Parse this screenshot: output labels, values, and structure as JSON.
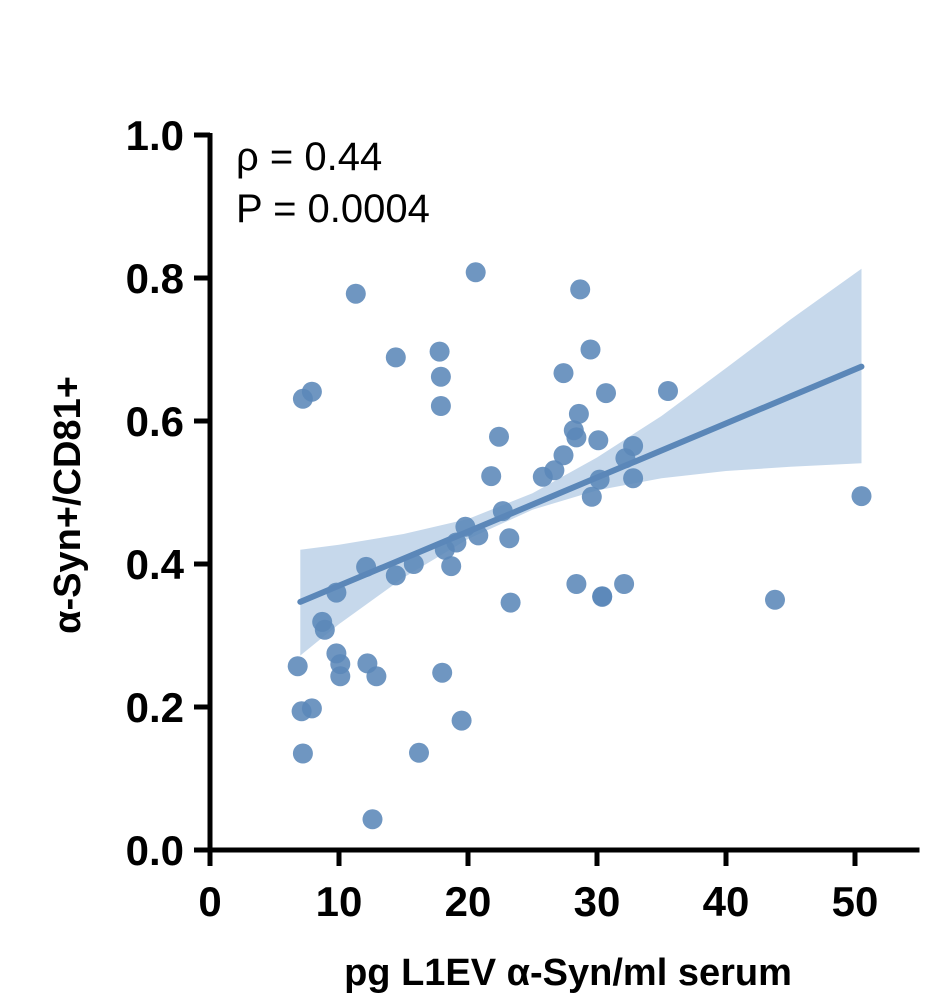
{
  "chart_data": {
    "type": "scatter",
    "xlabel": "pg L1EV α-Syn/ml serum",
    "ylabel": "α-Syn+/CD81+",
    "xlim": [
      0,
      55
    ],
    "ylim": [
      0,
      1.0
    ],
    "xticks": [
      0,
      10,
      20,
      30,
      40,
      50
    ],
    "xtick_labels": [
      "0",
      "10",
      "20",
      "30",
      "40",
      "50"
    ],
    "yticks": [
      0.0,
      0.2,
      0.4,
      0.6,
      0.8,
      1.0
    ],
    "ytick_labels": [
      "0.0",
      "0.2",
      "0.4",
      "0.6",
      "0.8",
      "1.0"
    ],
    "grid": false,
    "annotations": [
      "ρ = 0.44",
      "P = 0.0004"
    ],
    "colors": {
      "points": "#5b87b8",
      "line": "#5b87b8",
      "band": "#c3d6ea",
      "axis": "#000000"
    },
    "regression": {
      "x": [
        7,
        50.5
      ],
      "y": [
        0.347,
        0.676
      ]
    },
    "confidence_band": {
      "x": [
        7,
        10,
        15,
        20,
        25,
        30,
        35,
        40,
        45,
        50.5
      ],
      "lower": [
        0.272,
        0.316,
        0.381,
        0.435,
        0.476,
        0.503,
        0.52,
        0.53,
        0.536,
        0.541
      ],
      "upper": [
        0.42,
        0.427,
        0.442,
        0.463,
        0.499,
        0.549,
        0.607,
        0.674,
        0.742,
        0.813
      ]
    },
    "series": [
      {
        "x": [
          7.2,
          7.9,
          11.3,
          14.4,
          17.8,
          17.9,
          17.9,
          20.6,
          22.4,
          21.8,
          22.7,
          23.2,
          23.3,
          25.8,
          26.7,
          27.4,
          27.4,
          28.2,
          28.4,
          28.6,
          28.7,
          29.5,
          29.6,
          30.1,
          30.2,
          30.4,
          30.7,
          32.2,
          32.8,
          32.8,
          35.5,
          50.5,
          43.8,
          32.1,
          30.4,
          28.4,
          19.5,
          18.0,
          16.2,
          12.6,
          12.9,
          12.2,
          10.1,
          10.1,
          9.8,
          8.9,
          8.7,
          7.9,
          7.2,
          7.1,
          6.8,
          9.8,
          12.1,
          14.4,
          15.8,
          18.2,
          18.7,
          19.1,
          19.8,
          20.8
        ],
        "y": [
          0.631,
          0.641,
          0.778,
          0.689,
          0.697,
          0.662,
          0.621,
          0.808,
          0.578,
          0.523,
          0.474,
          0.436,
          0.346,
          0.522,
          0.531,
          0.552,
          0.667,
          0.587,
          0.577,
          0.61,
          0.784,
          0.7,
          0.494,
          0.573,
          0.518,
          0.355,
          0.639,
          0.548,
          0.565,
          0.52,
          0.642,
          0.495,
          0.35,
          0.372,
          0.354,
          0.372,
          0.181,
          0.248,
          0.136,
          0.043,
          0.243,
          0.261,
          0.26,
          0.243,
          0.275,
          0.308,
          0.319,
          0.198,
          0.135,
          0.194,
          0.257,
          0.36,
          0.396,
          0.384,
          0.4,
          0.42,
          0.397,
          0.43,
          0.452,
          0.44
        ]
      }
    ]
  }
}
